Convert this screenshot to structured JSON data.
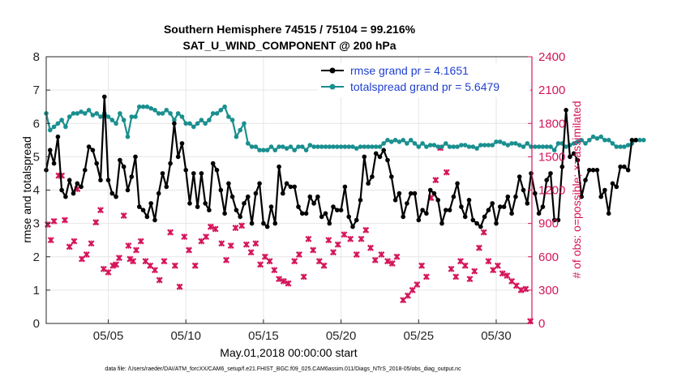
{
  "chart_data": {
    "type": "line",
    "title": "Southern Hemisphere 74515 / 75104 = 99.216%",
    "subtitle": "SAT_U_WIND_COMPONENT @ 200 hPa",
    "xlabel": "May.01,2018 00:00:00 start",
    "ylabel_left": "rmse and totalspread",
    "ylabel_right": "# of obs: o=possible; ×=assimilated",
    "footer": "data file: /Users/raeder/DAI/ATM_forcXX/CAM6_setup/f.e21.FHIST_BGC.f09_025.CAM6assim.011/Diags_NTrS_2018-05/obs_diag_output.nc",
    "xlim": [
      1,
      32.3
    ],
    "ylim_left": [
      0,
      8
    ],
    "ylim_right": [
      0,
      2400
    ],
    "x_tick_values": [
      5,
      10,
      15,
      20,
      25,
      30
    ],
    "x_tick_labels": [
      "05/05",
      "05/10",
      "05/15",
      "05/20",
      "05/25",
      "05/30"
    ],
    "y_left_ticks": [
      "0",
      "1",
      "2",
      "3",
      "4",
      "5",
      "6",
      "7",
      "8"
    ],
    "y_right_ticks": [
      "0",
      "300",
      "600",
      "900",
      "1200",
      "1500",
      "1800",
      "2100",
      "2400"
    ],
    "colors": {
      "rmse": "#000000",
      "spread": "#1a8f8f",
      "obs": "#d4145a",
      "legend_text": "#1f3fd0"
    },
    "series": [
      {
        "name": "rmse grand pr = 4.1651",
        "axis": "left",
        "marker": "dot",
        "x_start": 1.0,
        "x_step": 0.25,
        "values": [
          4.6,
          5.2,
          4.8,
          5.6,
          4.0,
          3.8,
          4.3,
          3.9,
          4.2,
          4.1,
          4.6,
          5.3,
          5.2,
          4.8,
          4.3,
          6.8,
          4.3,
          3.9,
          3.8,
          4.9,
          4.7,
          4.0,
          4.4,
          5.0,
          3.5,
          3.4,
          3.2,
          3.6,
          3.1,
          3.9,
          4.5,
          4.1,
          4.8,
          6.0,
          5.0,
          5.4,
          4.6,
          3.6,
          4.5,
          3.5,
          4.5,
          3.6,
          3.4,
          4.8,
          4.6,
          4.0,
          3.3,
          4.2,
          3.8,
          3.4,
          3.2,
          3.6,
          3.8,
          3.0,
          3.9,
          4.2,
          3.0,
          2.9,
          3.5,
          3.0,
          4.7,
          3.9,
          4.2,
          4.1,
          4.1,
          3.5,
          3.3,
          3.3,
          3.8,
          3.6,
          3.8,
          3.2,
          3.3,
          3.0,
          3.5,
          3.4,
          3.4,
          4.1,
          3.2,
          2.9,
          3.1,
          3.7,
          5.0,
          4.2,
          4.4,
          5.1,
          5.0,
          5.2,
          4.9,
          4.4,
          3.7,
          3.9,
          3.2,
          3.6,
          3.9,
          3.9,
          3.1,
          3.4,
          3.3,
          4.0,
          3.9,
          3.7,
          3.0,
          3.4,
          3.4,
          3.8,
          4.2,
          3.5,
          3.2,
          3.7,
          3.1,
          3.0,
          2.9,
          3.2,
          3.4,
          3.6,
          3.0,
          3.5,
          3.5,
          3.8,
          3.3,
          3.8,
          4.4,
          4.0,
          3.6,
          4.5,
          3.9,
          3.3,
          3.5,
          4.3,
          4.5,
          3.1,
          3.1,
          4.7,
          6.4,
          5.0,
          5.1,
          4.9,
          3.8,
          4.3,
          4.6,
          4.6,
          4.6,
          3.8,
          4.0,
          3.3,
          4.2,
          4.1,
          4.7,
          4.7,
          4.6,
          5.5,
          5.5
        ]
      },
      {
        "name": "totalspread grand pr = 5.6479",
        "axis": "left",
        "marker": "dot",
        "x_start": 1.0,
        "x_step": 0.25,
        "values": [
          6.3,
          5.8,
          5.9,
          6.0,
          6.1,
          5.9,
          6.2,
          6.3,
          6.3,
          6.35,
          6.3,
          6.4,
          6.25,
          6.3,
          6.2,
          6.3,
          6.2,
          6.1,
          6.0,
          6.3,
          6.1,
          5.6,
          6.2,
          6.2,
          6.5,
          6.5,
          6.5,
          6.45,
          6.4,
          6.3,
          6.3,
          6.4,
          6.3,
          6.1,
          6.3,
          6.2,
          6.0,
          6.0,
          5.9,
          6.0,
          6.1,
          6.0,
          6.1,
          6.3,
          6.3,
          6.4,
          6.5,
          6.2,
          6.1,
          5.6,
          5.8,
          6.0,
          5.4,
          5.3,
          5.3,
          5.2,
          5.2,
          5.2,
          5.3,
          5.2,
          5.3,
          5.3,
          5.25,
          5.3,
          5.2,
          5.3,
          5.3,
          5.2,
          5.35,
          5.3,
          5.3,
          5.3,
          5.3,
          5.3,
          5.3,
          5.3,
          5.3,
          5.3,
          5.3,
          5.3,
          5.25,
          5.3,
          5.3,
          5.3,
          5.3,
          5.3,
          5.3,
          5.4,
          5.5,
          5.45,
          5.5,
          5.45,
          5.5,
          5.4,
          5.5,
          5.4,
          5.3,
          5.4,
          5.3,
          5.35,
          5.35,
          5.3,
          5.3,
          5.4,
          5.3,
          5.3,
          5.3,
          5.35,
          5.35,
          5.3,
          5.3,
          5.25,
          5.35,
          5.35,
          5.35,
          5.35,
          5.45,
          5.45,
          5.4,
          5.35,
          5.4,
          5.4,
          5.35,
          5.3,
          5.4,
          5.3,
          5.3,
          5.3,
          5.3,
          5.3,
          5.3,
          5.2,
          5.4,
          5.4,
          5.3,
          5.35,
          5.4,
          5.45,
          5.5,
          5.4,
          5.5,
          5.6,
          5.55,
          5.6,
          5.5,
          5.5,
          5.4,
          5.3,
          5.3,
          5.3,
          5.35,
          5.4,
          5.5,
          5.5,
          5.5
        ]
      },
      {
        "name": "obs assimilated",
        "axis": "right",
        "marker": "x",
        "points": [
          [
            1.1,
            890
          ],
          [
            1.3,
            750
          ],
          [
            1.5,
            920
          ],
          [
            1.8,
            1330
          ],
          [
            2.0,
            1330
          ],
          [
            2.2,
            930
          ],
          [
            2.5,
            690
          ],
          [
            2.8,
            740
          ],
          [
            3.0,
            1210
          ],
          [
            3.3,
            580
          ],
          [
            3.6,
            620
          ],
          [
            3.9,
            720
          ],
          [
            4.2,
            910
          ],
          [
            4.5,
            1020
          ],
          [
            4.7,
            490
          ],
          [
            5.0,
            460
          ],
          [
            5.3,
            520
          ],
          [
            5.5,
            530
          ],
          [
            5.7,
            590
          ],
          [
            6.0,
            970
          ],
          [
            6.3,
            700
          ],
          [
            6.4,
            580
          ],
          [
            6.6,
            560
          ],
          [
            6.8,
            660
          ],
          [
            7.1,
            740
          ],
          [
            7.4,
            560
          ],
          [
            7.7,
            520
          ],
          [
            8.0,
            480
          ],
          [
            8.3,
            390
          ],
          [
            8.6,
            560
          ],
          [
            9.0,
            820
          ],
          [
            9.3,
            520
          ],
          [
            9.6,
            330
          ],
          [
            9.9,
            780
          ],
          [
            10.2,
            660
          ],
          [
            10.6,
            520
          ],
          [
            11.0,
            740
          ],
          [
            11.3,
            780
          ],
          [
            11.6,
            870
          ],
          [
            11.9,
            850
          ],
          [
            12.3,
            720
          ],
          [
            12.6,
            570
          ],
          [
            12.9,
            700
          ],
          [
            13.2,
            860
          ],
          [
            13.6,
            880
          ],
          [
            13.9,
            710
          ],
          [
            14.2,
            640
          ],
          [
            14.5,
            720
          ],
          [
            14.8,
            530
          ],
          [
            15.1,
            600
          ],
          [
            15.4,
            560
          ],
          [
            15.7,
            480
          ],
          [
            16.0,
            400
          ],
          [
            16.3,
            380
          ],
          [
            16.6,
            360
          ],
          [
            17.0,
            560
          ],
          [
            17.3,
            620
          ],
          [
            17.6,
            420
          ],
          [
            17.9,
            760
          ],
          [
            18.2,
            660
          ],
          [
            18.6,
            560
          ],
          [
            18.9,
            520
          ],
          [
            19.2,
            750
          ],
          [
            19.5,
            640
          ],
          [
            19.8,
            710
          ],
          [
            20.2,
            800
          ],
          [
            20.6,
            760
          ],
          [
            21.0,
            620
          ],
          [
            21.3,
            760
          ],
          [
            21.6,
            840
          ],
          [
            21.9,
            680
          ],
          [
            22.2,
            570
          ],
          [
            22.6,
            620
          ],
          [
            23.0,
            560
          ],
          [
            23.3,
            540
          ],
          [
            23.6,
            600
          ],
          [
            24.0,
            210
          ],
          [
            24.3,
            250
          ],
          [
            24.6,
            300
          ],
          [
            24.9,
            350
          ],
          [
            25.2,
            520
          ],
          [
            25.5,
            420
          ],
          [
            25.8,
            1130
          ],
          [
            26.1,
            1290
          ],
          [
            26.4,
            1580
          ],
          [
            26.8,
            1360
          ],
          [
            27.1,
            490
          ],
          [
            27.4,
            420
          ],
          [
            27.7,
            560
          ],
          [
            28.0,
            520
          ],
          [
            28.3,
            400
          ],
          [
            28.6,
            470
          ],
          [
            28.9,
            680
          ],
          [
            29.2,
            820
          ],
          [
            29.5,
            560
          ],
          [
            29.8,
            480
          ],
          [
            30.1,
            520
          ],
          [
            30.4,
            450
          ],
          [
            30.7,
            430
          ],
          [
            31.0,
            380
          ],
          [
            31.3,
            340
          ],
          [
            31.6,
            300
          ],
          [
            31.9,
            310
          ],
          [
            32.2,
            20
          ]
        ]
      }
    ]
  },
  "legend": {
    "rmse": "rmse grand pr = 4.1651",
    "spread": "totalspread grand pr = 5.6479"
  }
}
